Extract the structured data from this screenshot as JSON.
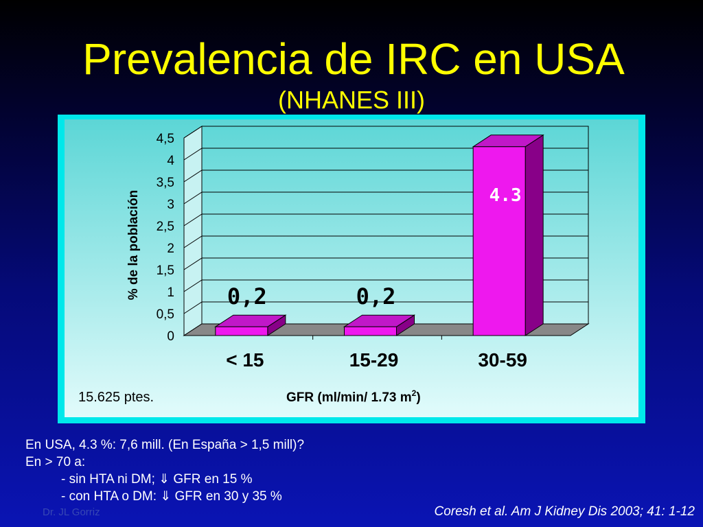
{
  "slide": {
    "title": "Prevalencia de IRC en USA",
    "subtitle": "(NHANES III)",
    "notes": [
      "En USA, 4.3 %: 7,6 mill. (En España > 1,5 mill)?",
      "En > 70 a:",
      "- sin HTA ni DM; ⇓ GFR en 15 %",
      "- con HTA o DM: ⇓ GFR en 30 y 35 %"
    ],
    "watermark": "Dr. JL Gorriz",
    "citation": "Coresh et al. Am J Kidney  Dis 2003; 41: 1-12"
  },
  "chart_data": {
    "type": "bar",
    "categories": [
      "< 15",
      "15-29",
      "30-59"
    ],
    "values": [
      0.2,
      0.2,
      4.3
    ],
    "data_labels": [
      "0,2",
      "0,2",
      "4.3"
    ],
    "ylabel": "% de la población",
    "xlabel": "GFR (ml/min/ 1.73 m",
    "xlabel_superscript": "2",
    "xlabel_suffix": ")",
    "annotation": "15.625 ptes.",
    "ylim": [
      0,
      4.5
    ],
    "yticks": [
      0,
      0.5,
      1,
      1.5,
      2,
      2.5,
      3,
      3.5,
      4,
      4.5
    ],
    "ytick_labels": [
      "0",
      "0,5",
      "1",
      "1,5",
      "2",
      "2,5",
      "3",
      "3,5",
      "4",
      "4,5"
    ],
    "grid": true,
    "colors": {
      "bar_front": "#ee18ee",
      "bar_side": "#880088",
      "bar_top": "#c018c8",
      "panel": "#00e8ea",
      "floor": "#888888"
    }
  }
}
